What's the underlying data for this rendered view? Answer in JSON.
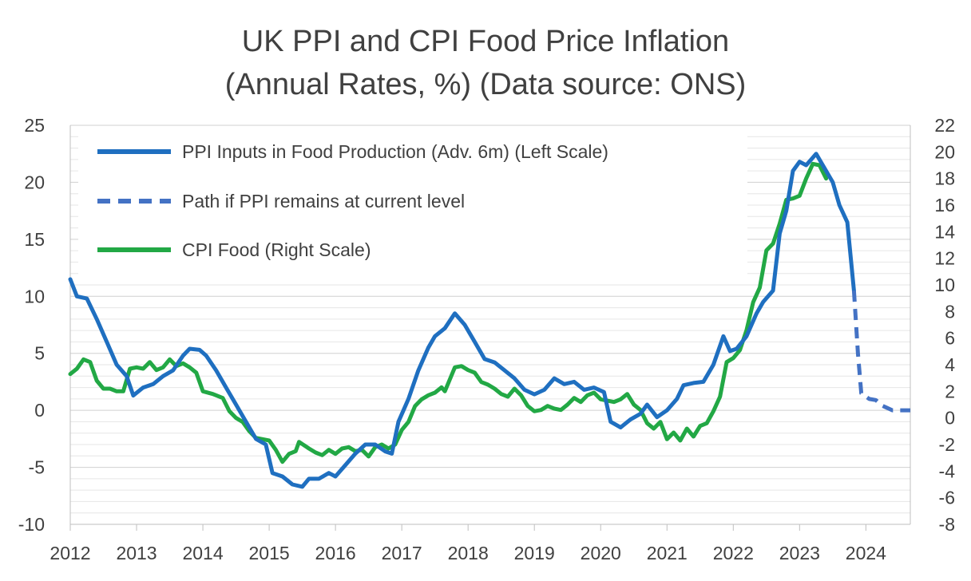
{
  "chart_data": {
    "type": "line",
    "title": "UK PPI and CPI Food Price Inflation",
    "subtitle": "(Annual Rates, %) (Data source: ONS)",
    "xlabel": "",
    "ylabel": "",
    "x_range": [
      2012,
      2024.67
    ],
    "ylim_left": [
      -10,
      25
    ],
    "ylim_right": [
      -8,
      22
    ],
    "left_ticks": [
      25,
      20,
      15,
      10,
      5,
      0,
      -5,
      -10
    ],
    "right_ticks": [
      22,
      20,
      18,
      16,
      14,
      12,
      10,
      8,
      6,
      4,
      2,
      0,
      -2,
      -4,
      -6,
      -8
    ],
    "x_ticks": [
      2012,
      2013,
      2014,
      2015,
      2016,
      2017,
      2018,
      2019,
      2020,
      2021,
      2022,
      2023,
      2024
    ],
    "legend": [
      {
        "label": "PPI Inputs in Food Production (Adv. 6m) (Left Scale)",
        "color": "#1f6fc0",
        "style": "solid"
      },
      {
        "label": "Path if PPI remains at current level",
        "color": "#4472c4",
        "style": "dashed"
      },
      {
        "label": "CPI Food (Right Scale)",
        "color": "#22a845",
        "style": "solid"
      }
    ],
    "series": [
      {
        "name": "PPI Inputs in Food Production (Adv. 6m) (Left Scale)",
        "axis": "left",
        "color": "#1f6fc0",
        "style": "solid",
        "points": [
          [
            2012.0,
            11.5
          ],
          [
            2012.1,
            10.0
          ],
          [
            2012.25,
            9.8
          ],
          [
            2012.4,
            8.0
          ],
          [
            2012.55,
            6.0
          ],
          [
            2012.7,
            4.0
          ],
          [
            2012.85,
            3.0
          ],
          [
            2012.95,
            1.3
          ],
          [
            2013.1,
            2.0
          ],
          [
            2013.25,
            2.3
          ],
          [
            2013.4,
            3.0
          ],
          [
            2013.55,
            3.5
          ],
          [
            2013.7,
            4.8
          ],
          [
            2013.8,
            5.4
          ],
          [
            2013.95,
            5.3
          ],
          [
            2014.05,
            4.8
          ],
          [
            2014.2,
            3.5
          ],
          [
            2014.35,
            2.0
          ],
          [
            2014.5,
            0.5
          ],
          [
            2014.65,
            -1.0
          ],
          [
            2014.8,
            -2.5
          ],
          [
            2014.95,
            -3.0
          ],
          [
            2015.05,
            -5.5
          ],
          [
            2015.2,
            -5.8
          ],
          [
            2015.35,
            -6.5
          ],
          [
            2015.5,
            -6.7
          ],
          [
            2015.6,
            -6.0
          ],
          [
            2015.75,
            -6.0
          ],
          [
            2015.9,
            -5.5
          ],
          [
            2016.0,
            -5.8
          ],
          [
            2016.15,
            -4.8
          ],
          [
            2016.3,
            -3.8
          ],
          [
            2016.45,
            -3.0
          ],
          [
            2016.6,
            -3.0
          ],
          [
            2016.75,
            -3.6
          ],
          [
            2016.85,
            -3.8
          ],
          [
            2016.95,
            -1.0
          ],
          [
            2017.1,
            1.0
          ],
          [
            2017.25,
            3.5
          ],
          [
            2017.4,
            5.5
          ],
          [
            2017.5,
            6.5
          ],
          [
            2017.65,
            7.2
          ],
          [
            2017.8,
            8.5
          ],
          [
            2017.95,
            7.5
          ],
          [
            2018.1,
            6.0
          ],
          [
            2018.25,
            4.5
          ],
          [
            2018.4,
            4.2
          ],
          [
            2018.55,
            3.5
          ],
          [
            2018.7,
            2.8
          ],
          [
            2018.85,
            1.8
          ],
          [
            2019.0,
            1.4
          ],
          [
            2019.15,
            1.8
          ],
          [
            2019.3,
            2.8
          ],
          [
            2019.45,
            2.3
          ],
          [
            2019.6,
            2.5
          ],
          [
            2019.75,
            1.8
          ],
          [
            2019.9,
            2.0
          ],
          [
            2020.05,
            1.6
          ],
          [
            2020.15,
            -1.0
          ],
          [
            2020.3,
            -1.5
          ],
          [
            2020.45,
            -0.8
          ],
          [
            2020.6,
            -0.3
          ],
          [
            2020.7,
            0.5
          ],
          [
            2020.85,
            -0.6
          ],
          [
            2021.0,
            0.0
          ],
          [
            2021.15,
            1.0
          ],
          [
            2021.25,
            2.2
          ],
          [
            2021.4,
            2.4
          ],
          [
            2021.55,
            2.5
          ],
          [
            2021.7,
            4.0
          ],
          [
            2021.85,
            6.5
          ],
          [
            2021.95,
            5.2
          ],
          [
            2022.05,
            5.4
          ],
          [
            2022.2,
            6.5
          ],
          [
            2022.35,
            8.5
          ],
          [
            2022.45,
            9.5
          ],
          [
            2022.6,
            10.5
          ],
          [
            2022.7,
            15.5
          ],
          [
            2022.8,
            17.5
          ],
          [
            2022.9,
            21.0
          ],
          [
            2023.0,
            21.8
          ],
          [
            2023.1,
            21.5
          ],
          [
            2023.25,
            22.5
          ],
          [
            2023.35,
            21.5
          ],
          [
            2023.5,
            20.0
          ],
          [
            2023.6,
            18.0
          ],
          [
            2023.72,
            16.5
          ],
          [
            2023.82,
            10.5
          ]
        ]
      },
      {
        "name": "Path if PPI remains at current level",
        "axis": "left",
        "color": "#4472c4",
        "style": "dashed",
        "points": [
          [
            2023.82,
            10.5
          ],
          [
            2023.88,
            5.0
          ],
          [
            2023.93,
            1.5
          ],
          [
            2024.05,
            1.0
          ],
          [
            2024.15,
            0.9
          ],
          [
            2024.25,
            0.4
          ],
          [
            2024.4,
            0.0
          ],
          [
            2024.55,
            0.0
          ],
          [
            2024.67,
            0.0
          ]
        ]
      },
      {
        "name": "CPI Food (Right Scale)",
        "axis": "right",
        "color": "#22a845",
        "style": "solid",
        "points": [
          [
            2012.0,
            3.3
          ],
          [
            2012.1,
            3.7
          ],
          [
            2012.2,
            4.4
          ],
          [
            2012.3,
            4.2
          ],
          [
            2012.4,
            2.8
          ],
          [
            2012.5,
            2.2
          ],
          [
            2012.6,
            2.2
          ],
          [
            2012.7,
            2.0
          ],
          [
            2012.8,
            2.0
          ],
          [
            2012.9,
            3.7
          ],
          [
            2013.0,
            3.8
          ],
          [
            2013.1,
            3.7
          ],
          [
            2013.2,
            4.2
          ],
          [
            2013.3,
            3.6
          ],
          [
            2013.4,
            3.8
          ],
          [
            2013.5,
            4.4
          ],
          [
            2013.6,
            3.9
          ],
          [
            2013.7,
            4.1
          ],
          [
            2013.8,
            3.8
          ],
          [
            2013.9,
            3.4
          ],
          [
            2014.0,
            2.0
          ],
          [
            2014.15,
            1.8
          ],
          [
            2014.3,
            1.5
          ],
          [
            2014.4,
            0.5
          ],
          [
            2014.5,
            0.0
          ],
          [
            2014.6,
            -0.3
          ],
          [
            2014.7,
            -1.0
          ],
          [
            2014.8,
            -1.5
          ],
          [
            2014.9,
            -1.6
          ],
          [
            2015.0,
            -1.7
          ],
          [
            2015.1,
            -2.4
          ],
          [
            2015.2,
            -3.3
          ],
          [
            2015.3,
            -2.7
          ],
          [
            2015.4,
            -2.5
          ],
          [
            2015.45,
            -1.8
          ],
          [
            2015.6,
            -2.3
          ],
          [
            2015.7,
            -2.6
          ],
          [
            2015.8,
            -2.8
          ],
          [
            2015.9,
            -2.4
          ],
          [
            2016.0,
            -2.7
          ],
          [
            2016.1,
            -2.3
          ],
          [
            2016.2,
            -2.2
          ],
          [
            2016.3,
            -2.5
          ],
          [
            2016.4,
            -2.4
          ],
          [
            2016.5,
            -2.9
          ],
          [
            2016.6,
            -2.2
          ],
          [
            2016.7,
            -2.0
          ],
          [
            2016.8,
            -2.3
          ],
          [
            2016.9,
            -2.0
          ],
          [
            2017.0,
            -0.9
          ],
          [
            2017.1,
            -0.3
          ],
          [
            2017.2,
            0.9
          ],
          [
            2017.3,
            1.4
          ],
          [
            2017.4,
            1.7
          ],
          [
            2017.5,
            1.9
          ],
          [
            2017.6,
            2.3
          ],
          [
            2017.65,
            2.0
          ],
          [
            2017.7,
            2.6
          ],
          [
            2017.8,
            3.8
          ],
          [
            2017.9,
            3.9
          ],
          [
            2018.0,
            3.6
          ],
          [
            2018.1,
            3.4
          ],
          [
            2018.2,
            2.7
          ],
          [
            2018.3,
            2.5
          ],
          [
            2018.4,
            2.2
          ],
          [
            2018.5,
            1.8
          ],
          [
            2018.6,
            1.6
          ],
          [
            2018.7,
            2.2
          ],
          [
            2018.8,
            1.7
          ],
          [
            2018.9,
            0.9
          ],
          [
            2019.0,
            0.5
          ],
          [
            2019.1,
            0.6
          ],
          [
            2019.2,
            0.9
          ],
          [
            2019.3,
            0.7
          ],
          [
            2019.4,
            0.6
          ],
          [
            2019.5,
            1.0
          ],
          [
            2019.6,
            1.5
          ],
          [
            2019.7,
            1.2
          ],
          [
            2019.8,
            1.7
          ],
          [
            2019.9,
            1.9
          ],
          [
            2020.0,
            1.4
          ],
          [
            2020.1,
            1.3
          ],
          [
            2020.2,
            1.2
          ],
          [
            2020.3,
            1.4
          ],
          [
            2020.4,
            1.8
          ],
          [
            2020.5,
            1.0
          ],
          [
            2020.6,
            0.6
          ],
          [
            2020.7,
            -0.4
          ],
          [
            2020.8,
            -0.8
          ],
          [
            2020.9,
            -0.3
          ],
          [
            2021.0,
            -1.6
          ],
          [
            2021.1,
            -1.1
          ],
          [
            2021.2,
            -1.7
          ],
          [
            2021.3,
            -0.8
          ],
          [
            2021.4,
            -1.4
          ],
          [
            2021.5,
            -0.6
          ],
          [
            2021.6,
            -0.4
          ],
          [
            2021.7,
            0.5
          ],
          [
            2021.8,
            1.6
          ],
          [
            2021.9,
            4.2
          ],
          [
            2022.0,
            4.5
          ],
          [
            2022.1,
            5.1
          ],
          [
            2022.2,
            6.6
          ],
          [
            2022.3,
            8.7
          ],
          [
            2022.4,
            9.8
          ],
          [
            2022.5,
            12.6
          ],
          [
            2022.6,
            13.1
          ],
          [
            2022.7,
            14.6
          ],
          [
            2022.8,
            16.4
          ],
          [
            2022.9,
            16.5
          ],
          [
            2023.0,
            16.7
          ],
          [
            2023.1,
            18.0
          ],
          [
            2023.2,
            19.1
          ],
          [
            2023.3,
            19.0
          ],
          [
            2023.4,
            18.0
          ]
        ]
      }
    ]
  }
}
